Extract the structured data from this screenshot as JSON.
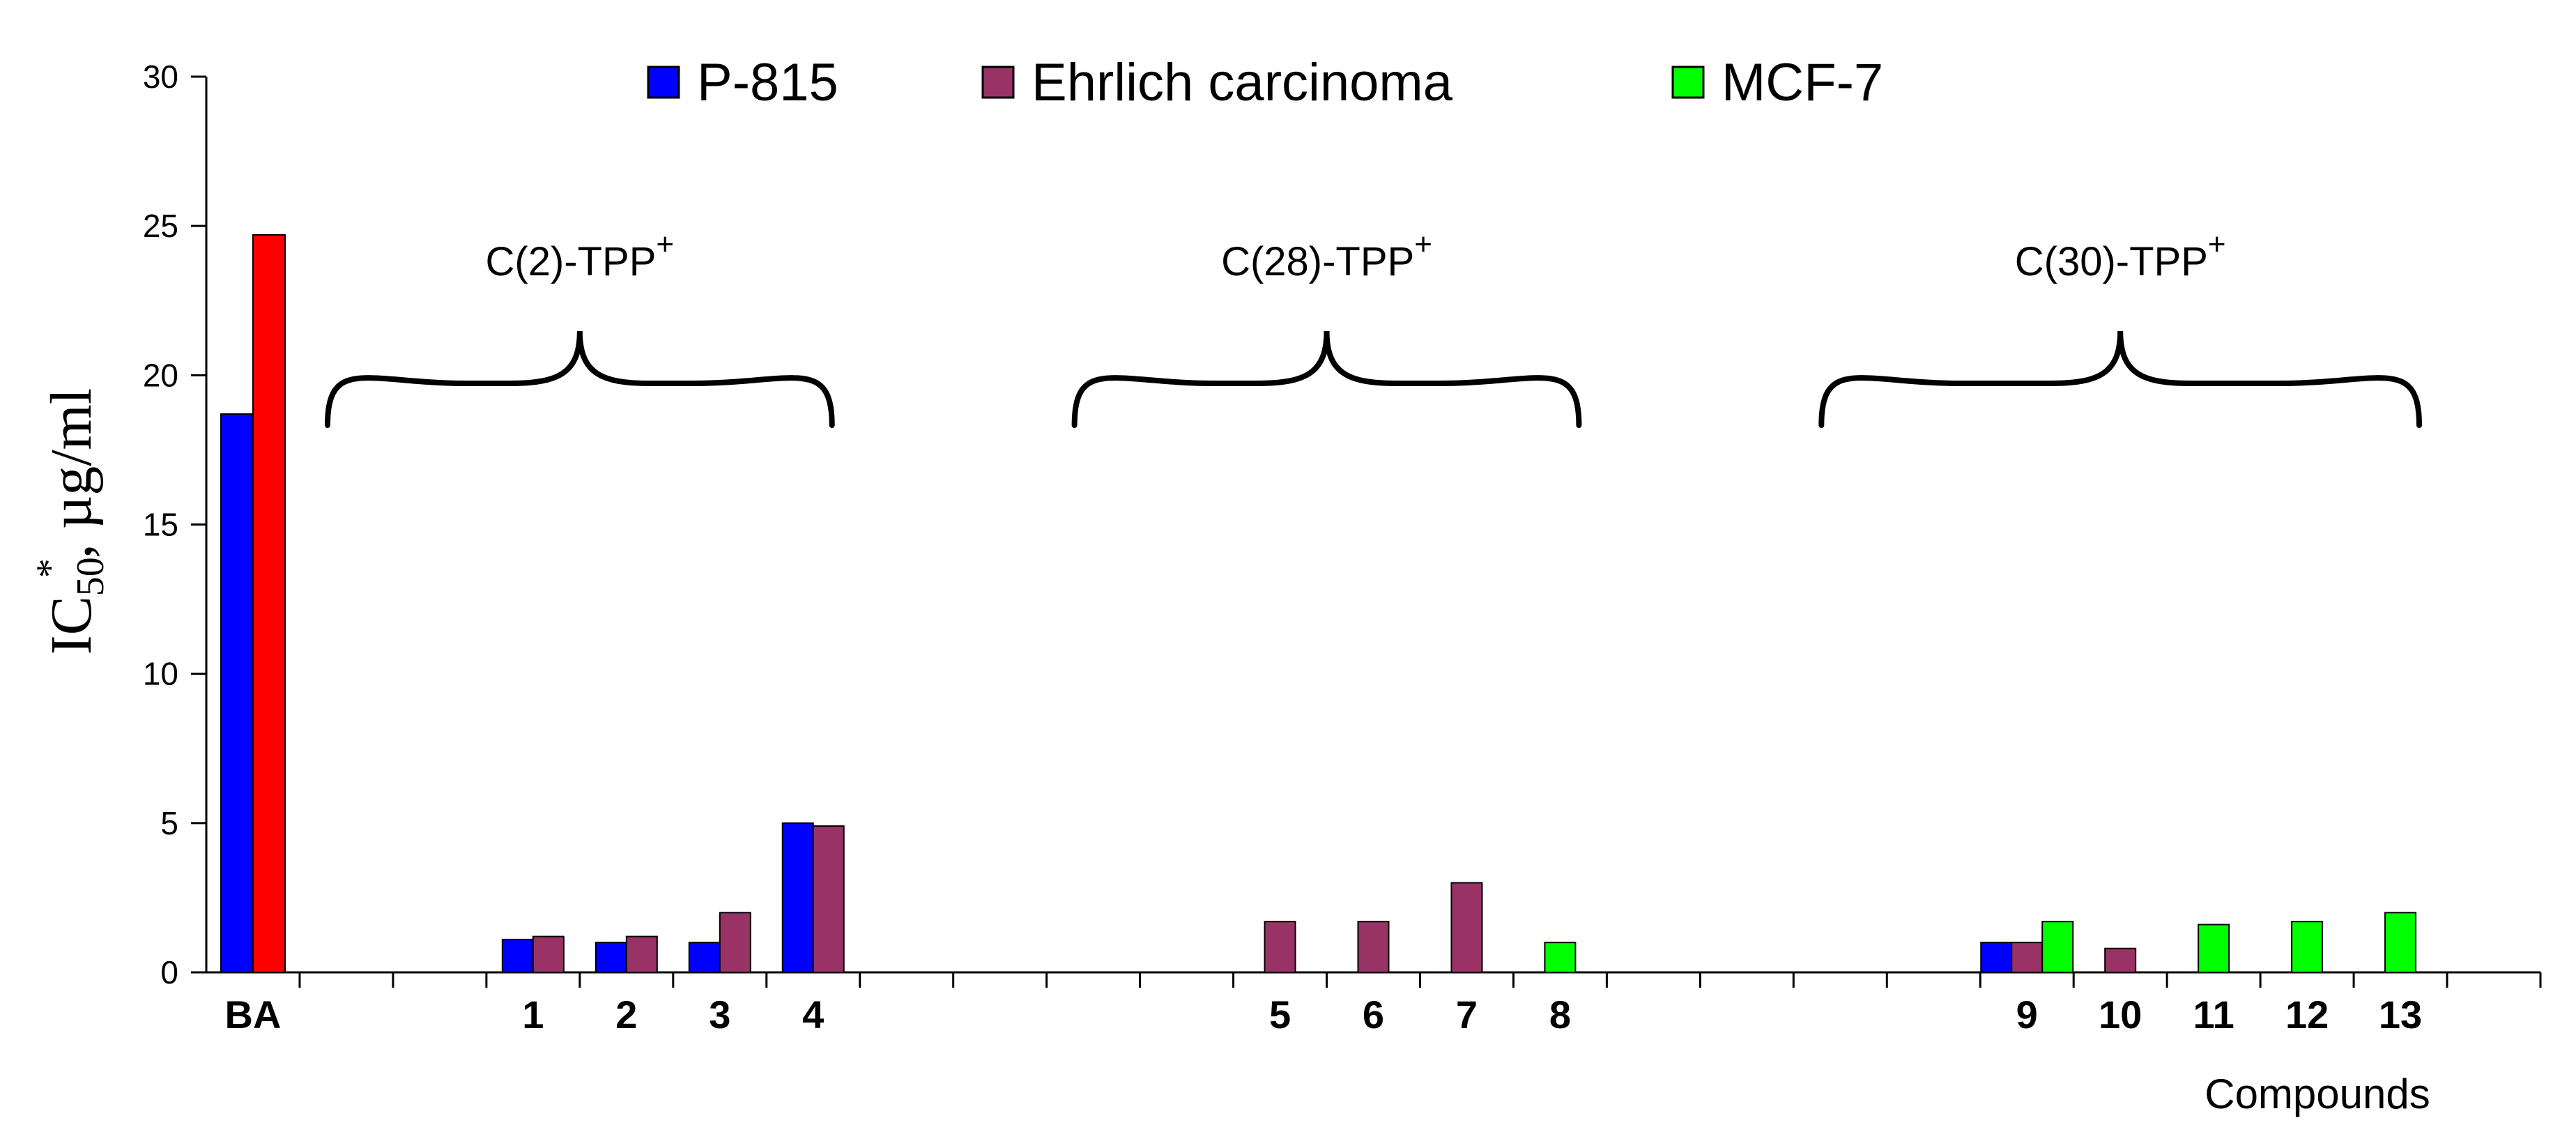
{
  "chart_data": {
    "type": "bar",
    "categories": [
      "BA",
      "",
      "",
      "1",
      "2",
      "3",
      "4",
      "",
      "",
      "",
      "",
      "5",
      "6",
      "7",
      "8",
      "",
      "",
      "",
      "",
      "9",
      "10",
      "11",
      "12",
      "13",
      ""
    ],
    "ylim": [
      0,
      30
    ],
    "yticks": [
      0,
      5,
      10,
      15,
      20,
      25,
      30
    ],
    "ylabel": {
      "main": "IC",
      "sub": "50",
      "sup": "*",
      "rest": ", µg/ml"
    },
    "xlabel": "Compounds",
    "legend_position": "top",
    "series": [
      {
        "name": "P-815",
        "color": "#0000ff",
        "values": [
          18.7,
          null,
          null,
          1.1,
          1.0,
          1.0,
          5.0,
          null,
          null,
          null,
          null,
          null,
          null,
          null,
          null,
          null,
          null,
          null,
          null,
          1.0,
          null,
          null,
          null,
          null,
          null
        ]
      },
      {
        "name": "Ehrlich carcinoma",
        "color": "#993366",
        "values": [
          24.7,
          null,
          null,
          1.2,
          1.2,
          2.0,
          4.9,
          null,
          null,
          null,
          null,
          1.7,
          1.7,
          3.0,
          null,
          null,
          null,
          null,
          null,
          1.0,
          0.8,
          null,
          null,
          null,
          null
        ]
      },
      {
        "name": "MCF-7",
        "color": "#00ff00",
        "values": [
          null,
          null,
          null,
          null,
          null,
          null,
          null,
          null,
          null,
          null,
          null,
          null,
          null,
          null,
          1.0,
          null,
          null,
          null,
          null,
          1.7,
          null,
          1.6,
          1.7,
          2.0,
          null
        ]
      }
    ],
    "bar_color_overrides": [
      {
        "series": 1,
        "category": 0,
        "color": "#ff0000"
      }
    ],
    "group_annotations": [
      {
        "label": "C(2)-TPP",
        "sup": "+",
        "from_category": 1,
        "to_category": 7
      },
      {
        "label": "C(28)-TPP",
        "sup": "+",
        "from_category": 9,
        "to_category": 15
      },
      {
        "label": "C(30)-TPP",
        "sup": "+",
        "from_category": 17,
        "to_category": 24
      }
    ]
  }
}
